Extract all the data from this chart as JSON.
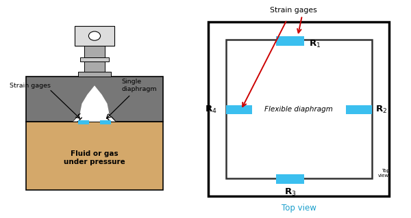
{
  "fig_width": 6.0,
  "fig_height": 3.19,
  "bg_color": "#ffffff",
  "tan_color": "#d4a86a",
  "gray_dark": "#777777",
  "gray_mid": "#aaaaaa",
  "gray_light": "#cccccc",
  "gray_lighter": "#dddddd",
  "blue_color": "#3bbfef",
  "red_arrow_color": "#cc0000",
  "black": "#000000",
  "inner_border": "#333333",
  "text_top_view": "#1a9fcc",
  "label_strain_gages_left": "Strain gages",
  "label_single_diaphragm": "Single\ndiaphragm",
  "label_fluid": "Fluid or gas\nunder pressure",
  "label_flexible": "Flexible diaphragm",
  "label_strain_gages_right": "Strain gages",
  "label_top_view": "Top view",
  "label_top_view_small": "Top\nview"
}
